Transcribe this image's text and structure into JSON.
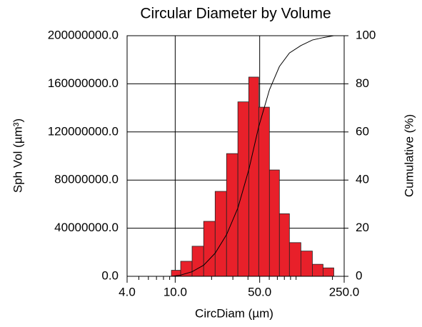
{
  "chart_data": {
    "type": "histogram",
    "title": "Circular Diameter by Volume",
    "xlabel": "CircDiam (µm)",
    "ylabel": "Sph Vol (µm³)",
    "y2label": "Cumulative (%)",
    "xscale": "log",
    "xlim": [
      4,
      250
    ],
    "xticks": [
      {
        "value": 4,
        "label": "4.0"
      },
      {
        "value": 10,
        "label": "10.0"
      },
      {
        "value": 50,
        "label": "50.0"
      },
      {
        "value": 250,
        "label": "250.0"
      }
    ],
    "xminorticks": [
      5,
      6,
      7,
      8,
      9,
      20,
      30,
      40,
      60,
      70,
      80,
      90,
      100,
      200
    ],
    "ylim": [
      0,
      200000000
    ],
    "yticks": [
      {
        "value": 0,
        "label": "0.0"
      },
      {
        "value": 40000000,
        "label": "40000000.0"
      },
      {
        "value": 80000000,
        "label": "80000000.0"
      },
      {
        "value": 120000000,
        "label": "120000000.0"
      },
      {
        "value": 160000000,
        "label": "160000000.0"
      },
      {
        "value": 200000000,
        "label": "200000000.0"
      }
    ],
    "y2lim": [
      0,
      100
    ],
    "y2ticks": [
      0,
      20,
      40,
      60,
      80,
      100
    ],
    "grid": true,
    "bins": [
      9.3,
      11.1,
      13.8,
      17.2,
      21.4,
      26.6,
      33.0,
      40.6,
      49.1,
      60.2,
      72.8,
      88.1,
      109.6,
      136.4,
      167.2,
      205.2
    ],
    "values": [
      5000000,
      12500000,
      25000000,
      45700000,
      70600000,
      102000000,
      145000000,
      165600000,
      140600000,
      88400000,
      52000000,
      28000000,
      21000000,
      10000000,
      7000000
    ],
    "color": "#e8202a",
    "series": [
      {
        "name": "Cumulative",
        "color": "#000000",
        "axis": "y2",
        "x": [
          9.3,
          11.1,
          13.8,
          17.2,
          21.4,
          26.6,
          33.0,
          40.6,
          49.1,
          60.2,
          72.8,
          88.1,
          109.6,
          136.4,
          167.2,
          205.2
        ],
        "values": [
          0,
          0.5,
          1.9,
          4.6,
          9.6,
          17.3,
          28.4,
          44.2,
          62.2,
          77.5,
          87.2,
          92.8,
          95.9,
          98.2,
          99.2,
          100
        ]
      }
    ]
  }
}
